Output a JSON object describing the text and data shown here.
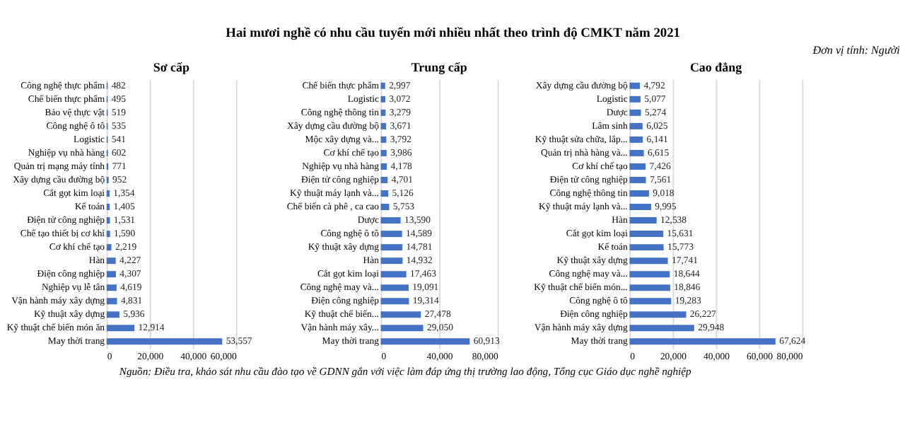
{
  "chart_data": [
    {
      "type": "bar",
      "orientation": "horizontal",
      "title": "Sơ cấp",
      "annotations": [
        "Hai mươi nghề có nhu cầu tuyển mới nhiều nhất theo trình độ CMKT năm 2021",
        "Đơn vị tính: Người",
        "Nguồn: Điều tra, khảo sát nhu cầu đào tạo về GDNN gắn với việc làm đáp ứng thị trường lao động, Tổng cục Giáo dục nghề nghiệp"
      ],
      "categories": [
        "Công nghệ thực phẩm",
        "Chế biến thực phẩm",
        "Bảo vệ thực vật",
        "Công nghệ ô tô",
        "Logistic",
        "Nghiệp vụ nhà hàng",
        "Quản trị mạng máy tính",
        "Xây dựng cầu đường bộ",
        "Cắt gọt kim loại",
        "Kế toán",
        "Điện tử công nghiệp",
        "Chế tạo thiết bị cơ khí",
        "Cơ khí chế tạo",
        "Hàn",
        "Điện công nghiệp",
        "Nghiệp vụ lễ tân",
        "Vận hành máy xây dựng",
        "Kỹ thuật xây dựng",
        "Kỹ thuật chế biến món ăn",
        "May thời trang"
      ],
      "values": [
        482,
        495,
        519,
        535,
        541,
        602,
        771,
        952,
        1354,
        1405,
        1531,
        1590,
        2219,
        4227,
        4307,
        4619,
        4831,
        5936,
        12914,
        53557
      ],
      "value_labels": [
        "482",
        "495",
        "519",
        "535",
        "541",
        "602",
        "771",
        "952",
        "1,354",
        "1,405",
        "1,531",
        "1,590",
        "2,219",
        "4,227",
        "4,307",
        "4,619",
        "4,831",
        "5,936",
        "12,914",
        "53,557"
      ],
      "color": "#4472c4",
      "xlim": [
        0,
        60000
      ],
      "xticks": [
        0,
        {
          "value": 20000,
          "label": "20,000"
        },
        {
          "value": 40000,
          "label": "40,000"
        },
        {
          "value": 60000,
          "label": "60,000"
        }
      ],
      "grid": "x"
    },
    {
      "type": "bar",
      "orientation": "horizontal",
      "title": "Trung cấp",
      "categories": [
        "Chế biến thực phẩm",
        "Logistic",
        "Công nghệ thông tin",
        "Xây dựng cầu đường bộ",
        "Mộc xây dựng và...",
        "Cơ khí chế tạo",
        "Nghiệp vụ nhà hàng",
        "Điện tử công nghiệp",
        "Kỹ thuật máy lạnh và...",
        "Chế biến cà phê , ca cao",
        "Dược",
        "Công nghệ ô tô",
        "Kỹ thuật xây dựng",
        "Hàn",
        "Cắt gọt kim loại",
        "Công nghệ may và...",
        "Điện công nghiệp",
        "Kỹ thuật chế biến...",
        "Vận hành máy xây...",
        "May thời trang"
      ],
      "values": [
        2997,
        3072,
        3279,
        3671,
        3792,
        3986,
        4178,
        4701,
        5126,
        5753,
        13590,
        14589,
        14781,
        14932,
        17463,
        19091,
        19314,
        27478,
        29050,
        60913
      ],
      "value_labels": [
        "2,997",
        "3,072",
        "3,279",
        "3,671",
        "3,792",
        "3,986",
        "4,178",
        "4,701",
        "5,126",
        "5,753",
        "13,590",
        "14,589",
        "14,781",
        "14,932",
        "17,463",
        "19,091",
        "19,314",
        "27,478",
        "29,050",
        "60,913"
      ],
      "color": "#4472c4",
      "xlim": [
        0,
        80000
      ],
      "xticks": [
        0,
        {
          "value": 40000,
          "label": "40,000"
        },
        {
          "value": 80000,
          "label": "80,000"
        }
      ],
      "grid": "x"
    },
    {
      "type": "bar",
      "orientation": "horizontal",
      "title": "Cao đẳng",
      "categories": [
        "Xây dựng cầu đường bộ",
        "Logistic",
        "Dược",
        "Lâm sinh",
        "Kỹ thuật sửa chữa, lắp...",
        "Quản trị nhà hàng và...",
        "Cơ khí chế tạo",
        "Điện tử công nghiệp",
        "Công nghệ thông tin",
        "Kỹ thuật máy lạnh và...",
        "Hàn",
        "Cắt gọt kim loại",
        "Kế toán",
        "Kỹ thuật xây dựng",
        "Công nghệ may và...",
        "Kỹ thuật chế biến món...",
        "Công nghệ ô tô",
        "Điện công nghiệp",
        "Vận hành máy xây dựng",
        "May thời trang"
      ],
      "values": [
        4792,
        5077,
        5274,
        6025,
        6141,
        6615,
        7426,
        7561,
        9018,
        9995,
        12538,
        15631,
        15773,
        17741,
        18644,
        18846,
        19283,
        26227,
        29948,
        67624
      ],
      "value_labels": [
        "4,792",
        "5,077",
        "5,274",
        "6,025",
        "6,141",
        "6,615",
        "7,426",
        "7,561",
        "9,018",
        "9,995",
        "12,538",
        "15,631",
        "15,773",
        "17,741",
        "18,644",
        "18,846",
        "19,283",
        "26,227",
        "29,948",
        "67,624"
      ],
      "color": "#4472c4",
      "xlim": [
        0,
        80000
      ],
      "xticks": [
        0,
        {
          "value": 20000,
          "label": "20,000"
        },
        {
          "value": 40000,
          "label": "40,000"
        },
        {
          "value": 60000,
          "label": "60,000"
        },
        {
          "value": 80000,
          "label": "80,000"
        }
      ],
      "grid": "x"
    }
  ]
}
